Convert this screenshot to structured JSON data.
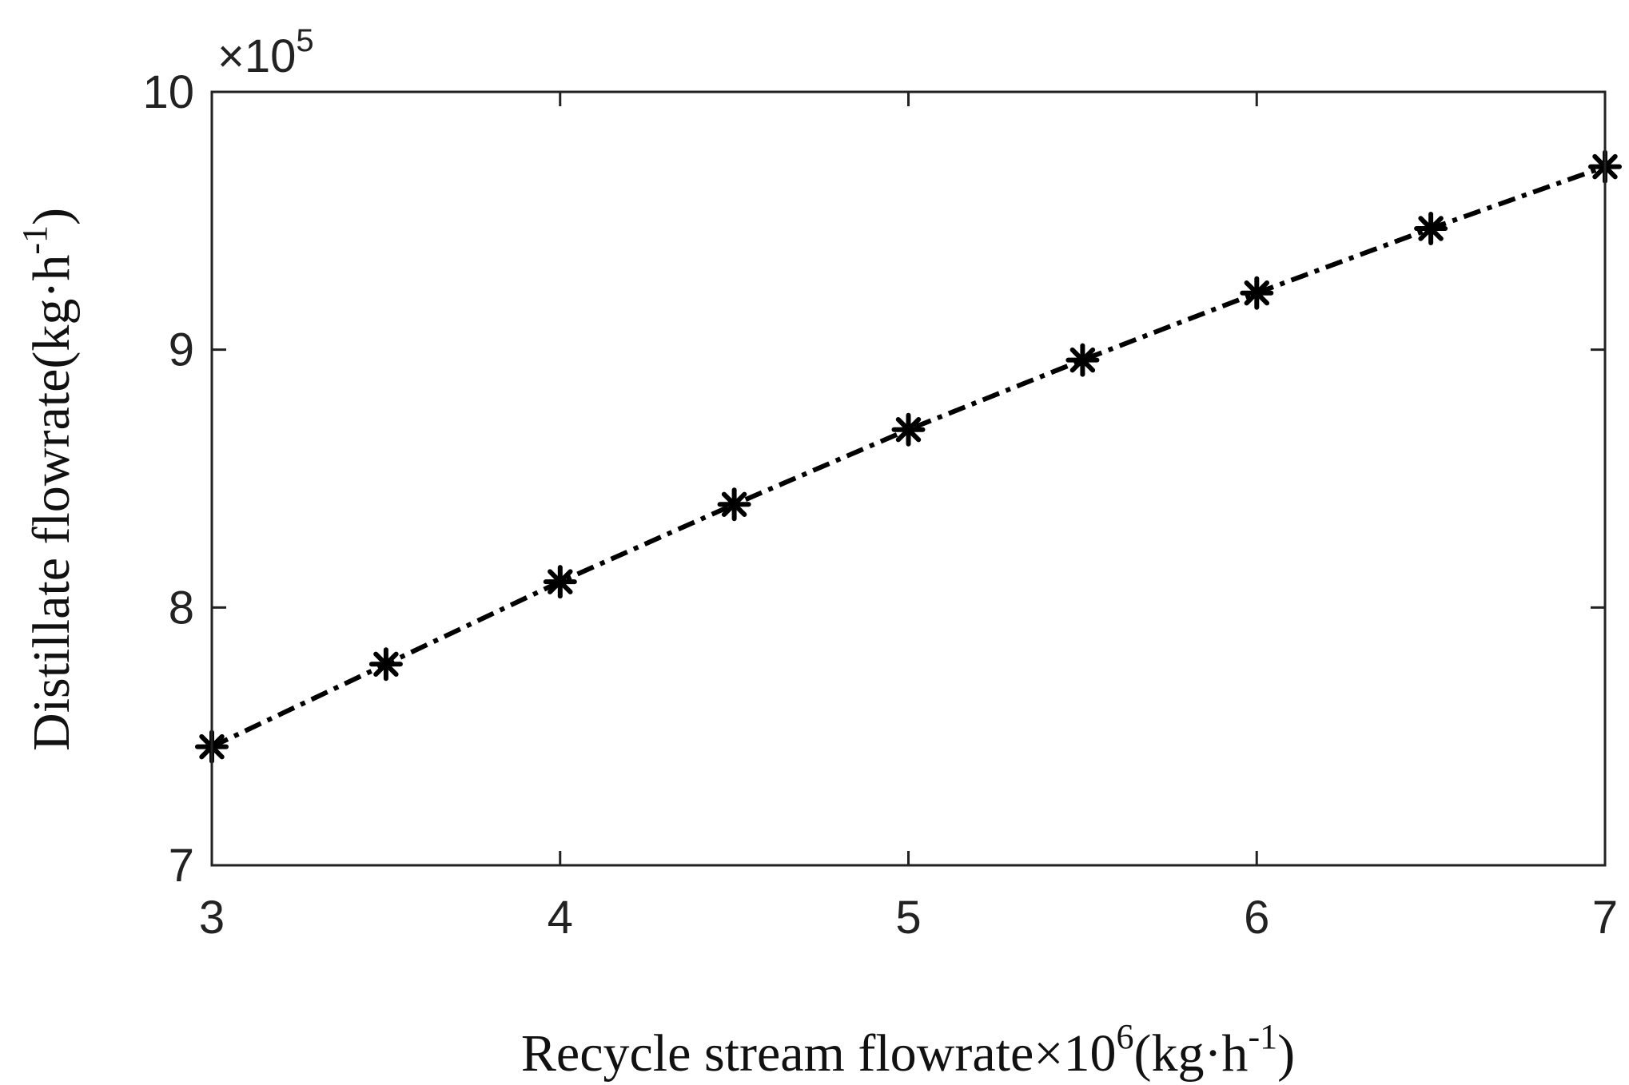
{
  "chart_data": {
    "type": "line",
    "title": "",
    "xlabel": "Recycle stream flowrate×10",
    "xlabel_sup": "6",
    "xlabel_tail": "(kg·h",
    "xlabel_tail_sup": "-1",
    "xlabel_close": ")",
    "ylabel": "Distillate flowrate(kg·h",
    "ylabel_sup": "-1",
    "ylabel_close": ")",
    "y_exponent_prefix": "×10",
    "y_exponent_power": "5",
    "xlim": [
      3,
      7
    ],
    "ylim": [
      7,
      10
    ],
    "xticks": [
      3,
      4,
      5,
      6,
      7
    ],
    "xtick_labels": [
      "3",
      "4",
      "5",
      "6",
      "7"
    ],
    "yticks": [
      7,
      8,
      9,
      10
    ],
    "ytick_labels": [
      "7",
      "8",
      "9",
      "10"
    ],
    "grid": false,
    "legend": "none",
    "series": [
      {
        "line_style": "dash-dot",
        "marker": "asterisk",
        "color": "#000000",
        "x": [
          3.0,
          3.5,
          4.0,
          4.5,
          5.0,
          5.5,
          6.0,
          6.5,
          7.0
        ],
        "y": [
          7.46,
          7.78,
          8.1,
          8.4,
          8.69,
          8.96,
          9.22,
          9.47,
          9.71
        ]
      }
    ]
  }
}
